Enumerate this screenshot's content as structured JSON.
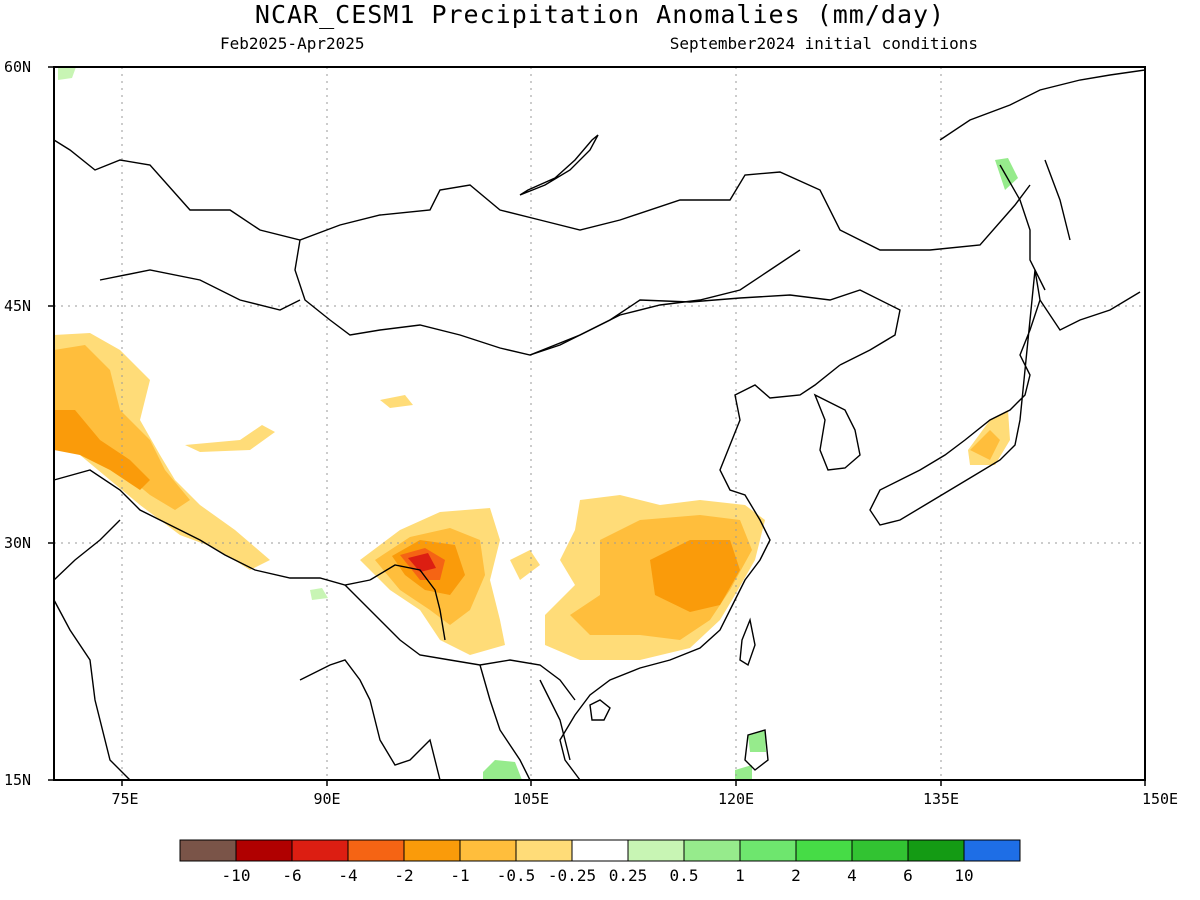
{
  "header": {
    "title": "NCAR_CESM1 Precipitation Anomalies (mm/day)",
    "period": "Feb2025-Apr2025",
    "initial_conditions": "September2024 initial conditions"
  },
  "axes": {
    "lat_labels": [
      "60N",
      "45N",
      "30N",
      "15N"
    ],
    "lon_labels": [
      "75E",
      "90E",
      "105E",
      "120E",
      "135E",
      "150E"
    ]
  },
  "colorbar": {
    "colors": [
      "#7a5448",
      "#b00000",
      "#dc1e12",
      "#f56414",
      "#fa9b0a",
      "#ffbe3c",
      "#ffdc78",
      "#ffffff",
      "#c8f5b4",
      "#96eb8c",
      "#6ee66e",
      "#46dc46",
      "#32c332",
      "#149b14",
      "#1e6ee6"
    ],
    "labels": [
      "-10",
      "-6",
      "-4",
      "-2",
      "-1",
      "-0.5",
      "-0.25",
      "0.25",
      "0.5",
      "1",
      "2",
      "4",
      "6",
      "10"
    ]
  }
}
